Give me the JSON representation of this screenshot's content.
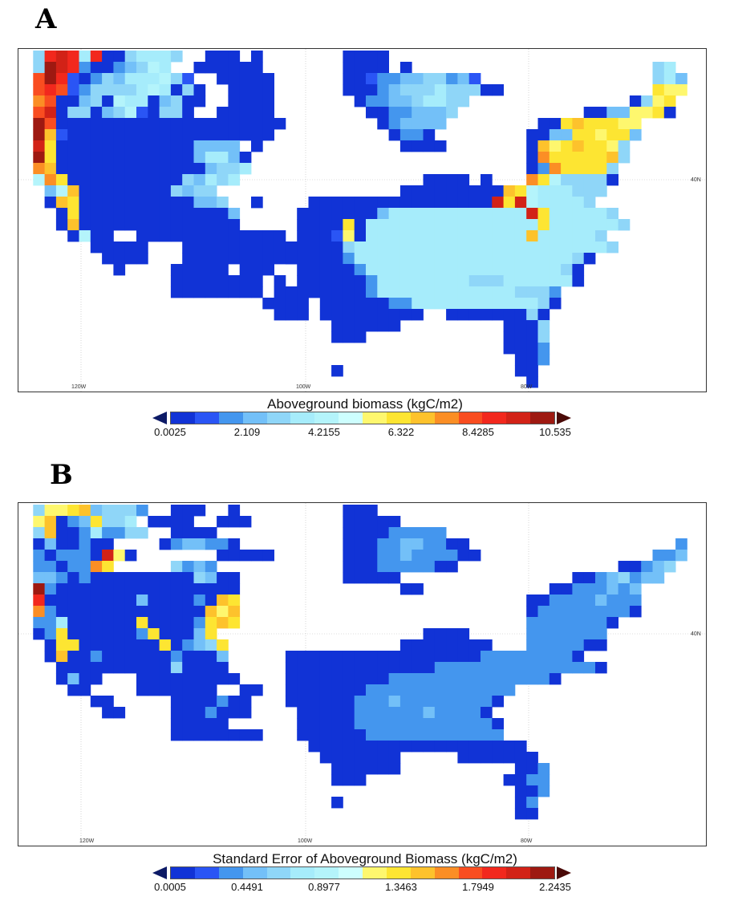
{
  "palette": [
    "#1133d6",
    "#2a55f5",
    "#4496ee",
    "#73c0f8",
    "#8fd6f8",
    "#a6ecfb",
    "#b4f4fb",
    "#cdfefe",
    "#fef76e",
    "#fde532",
    "#fdc22c",
    "#fb8e25",
    "#f94d20",
    "#f2281d",
    "#d22217",
    "#9e1911"
  ],
  "palette_key": "1023456789abcdef",
  "map_labels": {
    "lon": [
      "120W",
      "100W",
      "80W"
    ],
    "lat": [
      "40N"
    ]
  },
  "panels": [
    {
      "label": "A",
      "colorbar_title": "Aboveground biomass (kgC/m2)",
      "ticks": [
        "0.0025",
        "2.109",
        "4.2155",
        "6.322",
        "8.4285",
        "10.535"
      ],
      "grid": [
        "1:4ded5d1145554|16:111|20:1|28:1111",
        "1:4fed21123465|15:111111|28:1111|33:1|55:45",
        "1:cfd01243555640|17:11111|28:110223344230|55:453",
        "1:cdc024444565141|18:1111|28:11123444544411|55:988",
        "1:bc1134165513411|18:1111|29:1223345544|53:1489",
        "1:ce144134601441|17:11111|30:11223334|49:11338891",
        "1:fc11111111111111111111|31:123333|45:119a99988",
        "1:fa0111111111111111111|32:1221|44:1133998993",
        "1:e91111111111113333|20:1|33:1111|44:1a89a9984",
        "1:f911111111111135531|44:1b99999a4",
        "1:ba11111111111113445|44:12b99994",
        "1:6b9111111111143545|35:1111|40:1|44:b9644441",
        "2:36a111111114344|33:11111111|41:1a96555444",
        "2:1a91111111111334|20:1|25:1111111111111111|41:e9e655554",
        "3:1911111111111113|24:11111113555555555555e9555554",
        "3:1a11111111111111|24:11119155555555555555595555554",
        "4:1611|10:1111111111111|24:11108155555555555555a555554",
        "6:11111|14:1111111111|24:1111455555555555555555555554",
        "7:1111|14:11111111111|23:111112555555555555555555541",
        "8:1|13:11111|19:111|24:1111125555555555555555541",
        "13:11111111|22:1|24:1111112555555554445555551",
        "13:11111111|22:11|24:11111125555555555554442",
        "21:1111|26:111111225555555555541",
        "22:111|26:111111111|37:1111111|44:41",
        "27:11111|32:1|42:1114",
        "27:111|42:1114",
        "42:1112",
        "43:112",
        "27:1|43:11",
        "44:1"
      ]
    },
    {
      "label": "B",
      "colorbar_title": "Standard Error of Aboveground Biomass (kgC/m2)",
      "ticks": [
        "0.0005",
        "0.4491",
        "0.8977",
        "1.3463",
        "1.7949",
        "2.2435"
      ],
      "grid": [
        "1:4889a34442|13:111|18:1|28:111",
        "1:8a1239445|11:1111|17:111|28:11111",
        "1:4a11252244|13:1111|28:111122222",
        "1:1311211|12:1233221|28:11122332211|57:2",
        "1:212221e81|17:11111|28:111223222211|55:223",
        "1:22122b9|13:4232|28:1112222211|52:11234",
        "1:332121111111114311|28:11111|48:11234233",
        "1:f21111111111111111|33:11|46:11222323",
        "1:d111111113111121a9|44:1122223222",
        "1:b21111111111111a8a|44:1222222221",
        "1:2251111119111129a9|44:22222221",
        "1:1291111112911139|35:1111|44:2222222",
        "2:1991111111912349|33:11111111|44:2222211",
        "2:1a11211111121113|23:11111111111111111222222221",
        "3:111111111141111|23:1111111111111222222222222221",
        "3:1311|10:111111111|23:111111111222222222222221",
        "4:11|10:1111111|19:11|23:11111112222222222222",
        "6:11|13:1111211|23:1111112223222222221",
        "7:11|13:1112111|24:11111222222322221",
        "13:11111|24:111112222222222221",
        "13:11111111|24:111111222222222222",
        "25:1111111111111111111",
        "26:1111111|38:111111|43:11",
        "27:11111|32:1|43:112",
        "27:111|42:1122",
        "43:112",
        "27:1|43:12",
        "43:11"
      ]
    }
  ]
}
